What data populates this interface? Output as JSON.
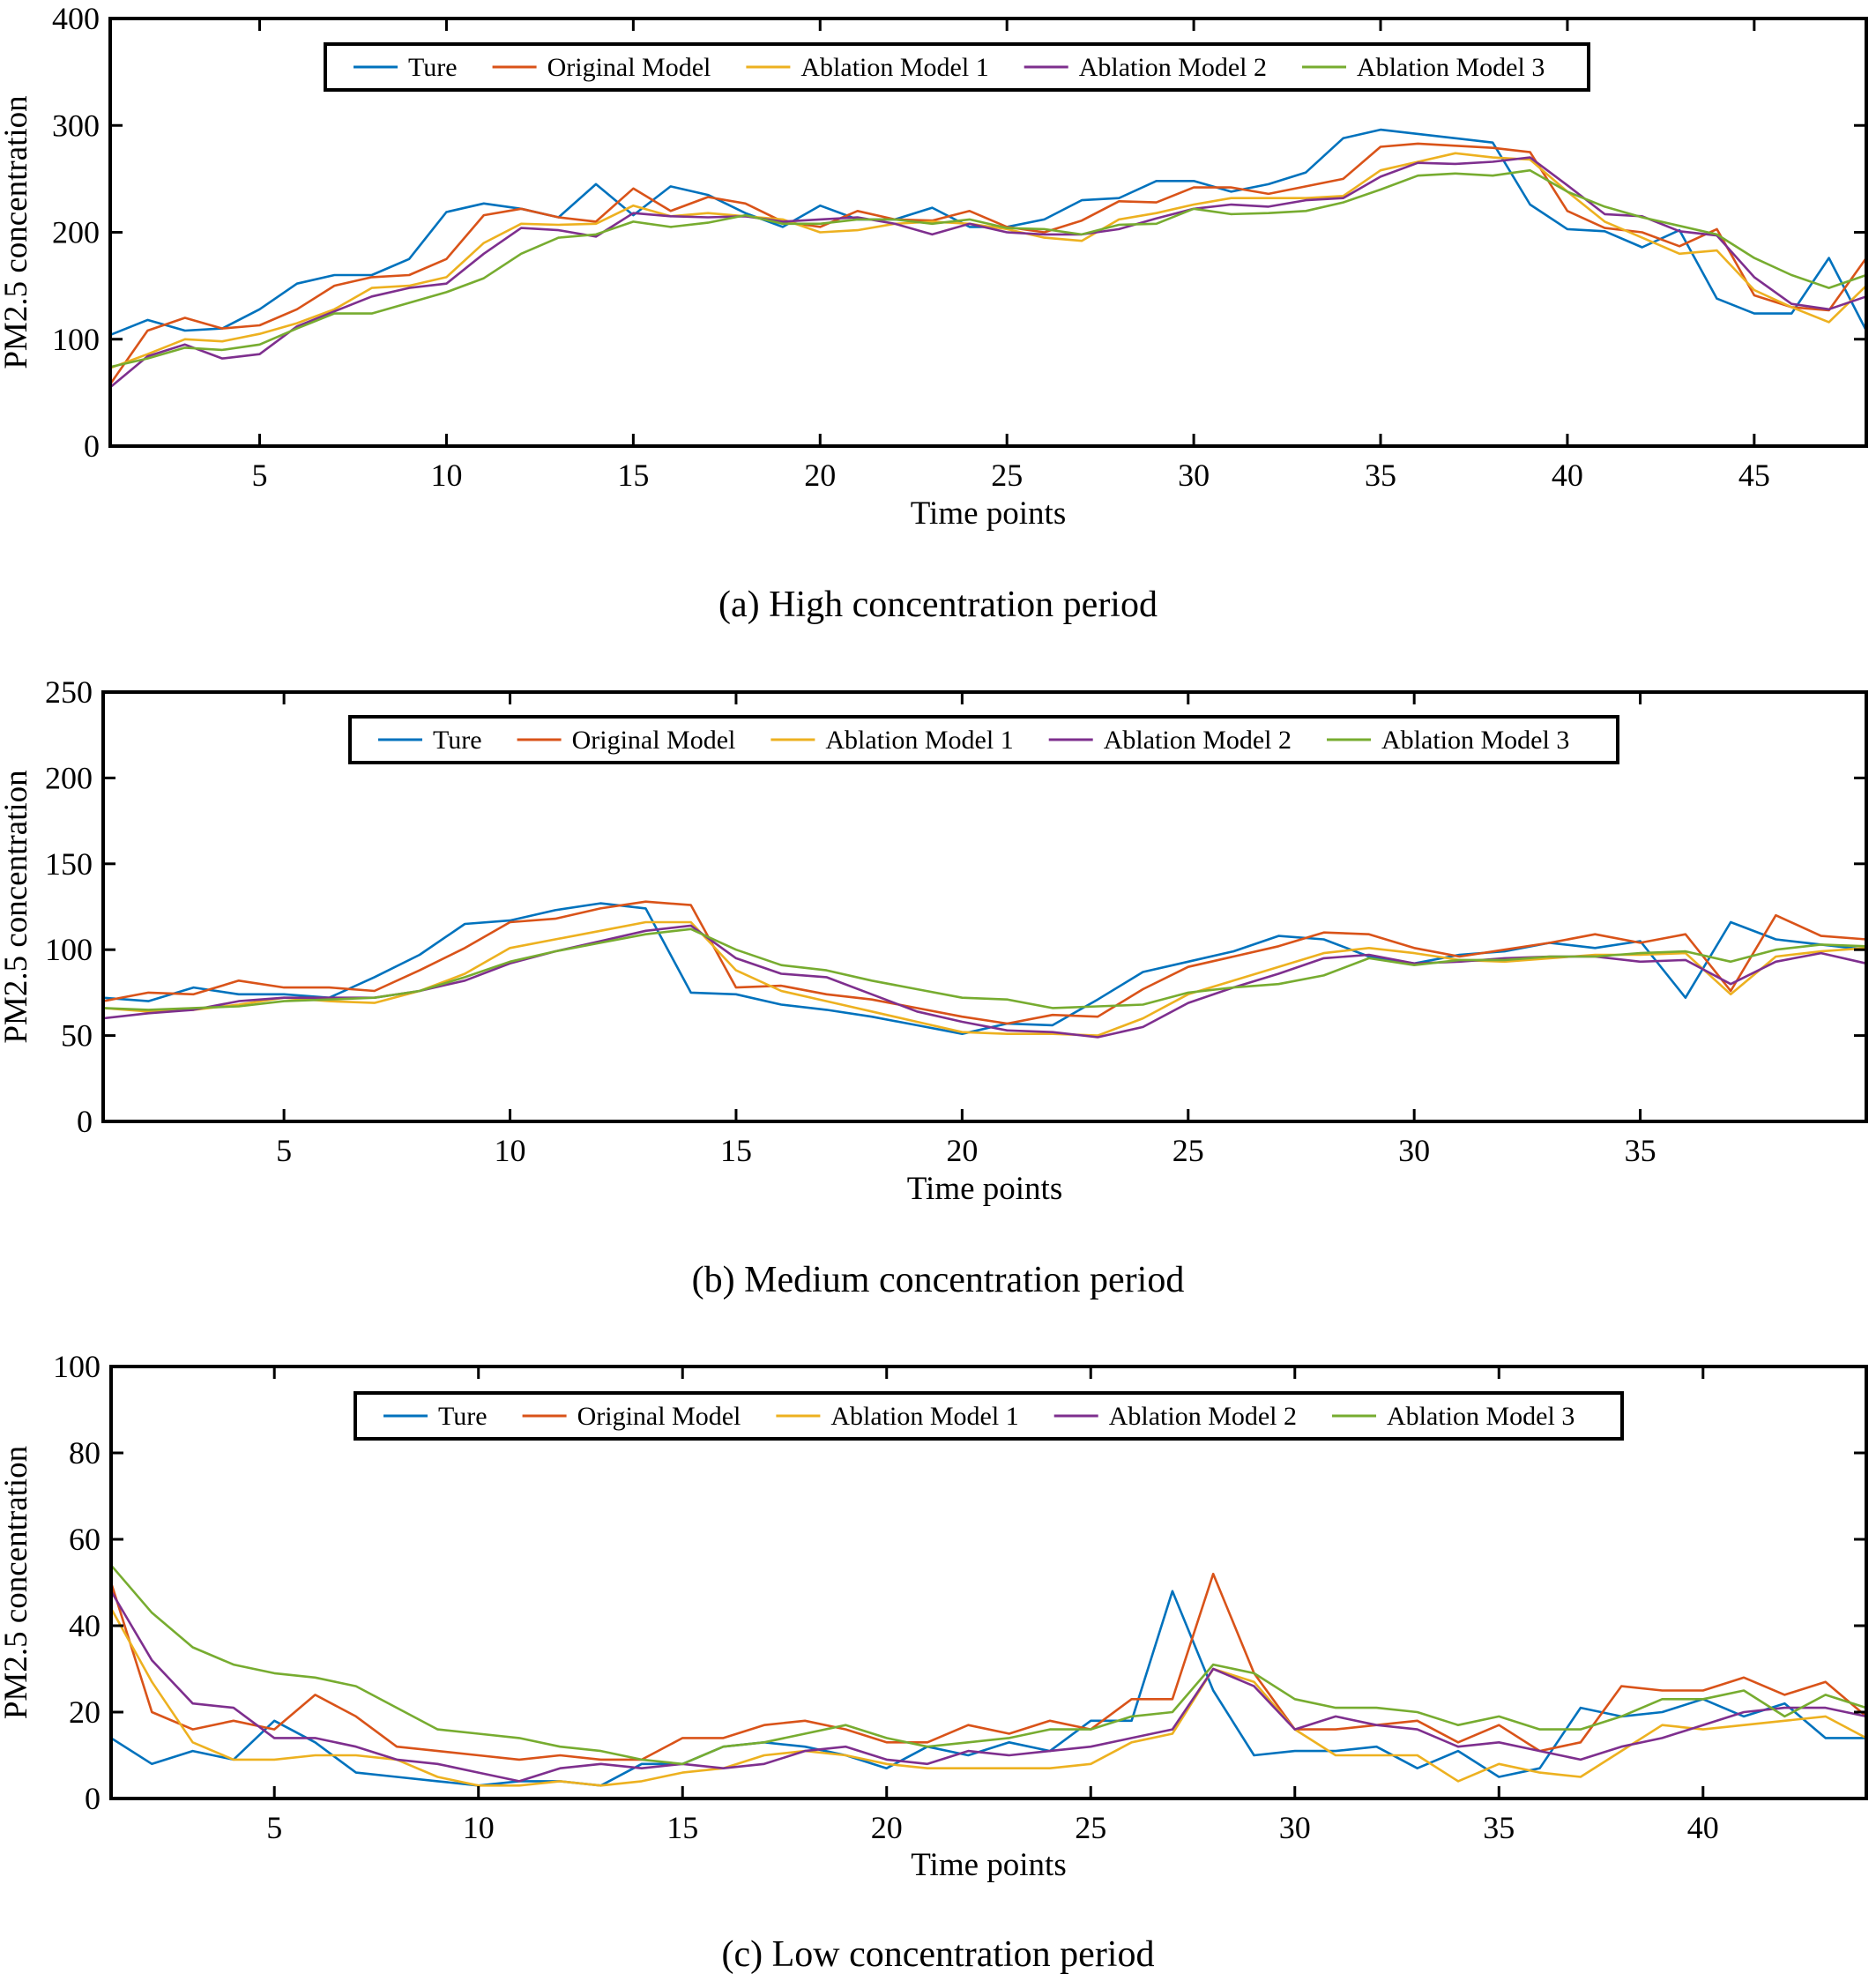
{
  "colors": {
    "Ture": "#0072BD",
    "Original Model": "#D95319",
    "Ablation Model 1": "#EDB120",
    "Ablation Model 2": "#7E2F8E",
    "Ablation Model 3": "#77AC30"
  },
  "chart_data": [
    {
      "type": "line",
      "caption": "(a) High concentration period",
      "xlabel": "Time points",
      "ylabel": "PM2.5 concentration",
      "xlim": [
        1,
        48
      ],
      "ylim": [
        0,
        400
      ],
      "xticks": [
        5,
        10,
        15,
        20,
        25,
        30,
        35,
        40,
        45
      ],
      "yticks": [
        0,
        100,
        200,
        300,
        400
      ],
      "grid": false,
      "legend": "top-center",
      "legend_entries": [
        "Ture",
        "Original Model",
        "Ablation Model 1",
        "Ablation Model 2",
        "Ablation Model 3"
      ],
      "x": [
        1,
        2,
        3,
        4,
        5,
        6,
        7,
        8,
        9,
        10,
        11,
        12,
        13,
        14,
        15,
        16,
        17,
        18,
        19,
        20,
        21,
        22,
        23,
        24,
        25,
        26,
        27,
        28,
        29,
        30,
        31,
        32,
        33,
        34,
        35,
        36,
        37,
        38,
        39,
        40,
        41,
        42,
        43,
        44,
        45,
        46,
        47,
        48
      ],
      "series": [
        {
          "name": "Ture",
          "values": [
            104,
            118,
            108,
            110,
            128,
            152,
            160,
            160,
            175,
            219,
            227,
            222,
            214,
            245,
            216,
            243,
            235,
            218,
            205,
            225,
            212,
            212,
            223,
            205,
            205,
            212,
            230,
            232,
            248,
            248,
            238,
            245,
            256,
            288,
            296,
            292,
            288,
            284,
            226,
            203,
            201,
            186,
            202,
            138,
            124,
            124,
            176,
            108
          ]
        },
        {
          "name": "Original Model",
          "values": [
            58,
            108,
            120,
            110,
            113,
            128,
            150,
            158,
            160,
            175,
            216,
            222,
            214,
            210,
            241,
            220,
            233,
            227,
            210,
            205,
            220,
            212,
            211,
            220,
            205,
            200,
            211,
            229,
            228,
            242,
            242,
            236,
            243,
            250,
            280,
            283,
            281,
            279,
            275,
            220,
            204,
            200,
            187,
            203,
            141,
            130,
            127,
            176
          ]
        },
        {
          "name": "Ablation Model 1",
          "values": [
            73,
            86,
            100,
            98,
            105,
            115,
            128,
            148,
            150,
            158,
            190,
            208,
            207,
            208,
            225,
            215,
            218,
            215,
            212,
            200,
            202,
            208,
            210,
            208,
            203,
            195,
            192,
            212,
            218,
            226,
            232,
            232,
            232,
            234,
            258,
            266,
            274,
            270,
            268,
            238,
            210,
            195,
            180,
            183,
            146,
            130,
            116,
            150
          ]
        },
        {
          "name": "Ablation Model 2",
          "values": [
            55,
            84,
            95,
            82,
            86,
            112,
            126,
            140,
            148,
            152,
            180,
            204,
            202,
            196,
            218,
            215,
            214,
            215,
            210,
            212,
            214,
            208,
            198,
            208,
            200,
            198,
            198,
            203,
            213,
            222,
            226,
            224,
            230,
            232,
            252,
            265,
            264,
            266,
            270,
            244,
            217,
            215,
            201,
            197,
            158,
            133,
            128,
            140
          ]
        },
        {
          "name": "Ablation Model 3",
          "values": [
            74,
            82,
            92,
            90,
            95,
            110,
            124,
            124,
            134,
            144,
            157,
            180,
            195,
            198,
            210,
            205,
            209,
            216,
            208,
            208,
            212,
            212,
            208,
            212,
            204,
            203,
            198,
            207,
            208,
            222,
            217,
            218,
            220,
            228,
            240,
            253,
            255,
            253,
            258,
            238,
            224,
            214,
            206,
            198,
            176,
            160,
            148,
            160
          ]
        }
      ]
    },
    {
      "type": "line",
      "caption": "(b) Medium concentration period",
      "xlabel": "Time points",
      "ylabel": "PM2.5 concentration",
      "xlim": [
        1,
        40
      ],
      "ylim": [
        0,
        250
      ],
      "xticks": [
        5,
        10,
        15,
        20,
        25,
        30,
        35
      ],
      "yticks": [
        0,
        50,
        100,
        150,
        200,
        250
      ],
      "grid": false,
      "legend": "top-center",
      "legend_entries": [
        "Ture",
        "Original Model",
        "Ablation Model 1",
        "Ablation Model 2",
        "Ablation Model 3"
      ],
      "x": [
        1,
        2,
        3,
        4,
        5,
        6,
        7,
        8,
        9,
        10,
        11,
        12,
        13,
        14,
        15,
        16,
        17,
        18,
        19,
        20,
        21,
        22,
        23,
        24,
        25,
        26,
        27,
        28,
        29,
        30,
        31,
        32,
        33,
        34,
        35,
        36,
        37,
        38,
        39,
        40
      ],
      "series": [
        {
          "name": "Ture",
          "values": [
            72,
            70,
            78,
            74,
            74,
            72,
            84,
            97,
            115,
            117,
            123,
            127,
            124,
            75,
            74,
            68,
            65,
            61,
            56,
            51,
            57,
            56,
            71,
            87,
            93,
            99,
            108,
            106,
            96,
            92,
            97,
            99,
            104,
            101,
            105,
            72,
            116,
            106,
            103,
            100
          ]
        },
        {
          "name": "Original Model",
          "values": [
            70,
            75,
            74,
            82,
            78,
            78,
            76,
            88,
            101,
            116,
            118,
            124,
            128,
            126,
            78,
            79,
            74,
            71,
            66,
            61,
            57,
            62,
            61,
            77,
            90,
            96,
            102,
            110,
            109,
            101,
            96,
            100,
            104,
            109,
            104,
            109,
            76,
            120,
            108,
            106
          ]
        },
        {
          "name": "Ablation Model 1",
          "values": [
            66,
            64,
            65,
            68,
            72,
            70,
            69,
            76,
            86,
            101,
            106,
            111,
            116,
            116,
            88,
            76,
            70,
            64,
            58,
            52,
            51,
            51,
            50,
            60,
            74,
            82,
            90,
            98,
            101,
            98,
            94,
            93,
            95,
            97,
            97,
            98,
            74,
            96,
            99,
            101
          ]
        },
        {
          "name": "Ablation Model 2",
          "values": [
            60,
            63,
            65,
            70,
            72,
            72,
            72,
            76,
            82,
            92,
            99,
            105,
            111,
            114,
            95,
            86,
            84,
            74,
            64,
            58,
            53,
            52,
            49,
            55,
            69,
            78,
            86,
            95,
            97,
            92,
            93,
            95,
            96,
            96,
            93,
            94,
            80,
            93,
            98,
            92
          ]
        },
        {
          "name": "Ablation Model 3",
          "values": [
            66,
            65,
            66,
            67,
            70,
            71,
            72,
            76,
            84,
            93,
            99,
            104,
            109,
            112,
            100,
            91,
            88,
            82,
            77,
            72,
            71,
            66,
            67,
            68,
            75,
            78,
            80,
            85,
            95,
            91,
            94,
            94,
            96,
            96,
            98,
            99,
            93,
            100,
            103,
            102
          ]
        }
      ]
    },
    {
      "type": "line",
      "caption": "(c) Low concentration period",
      "xlabel": "Time points",
      "ylabel": "PM2.5 concentration",
      "xlim": [
        1,
        44
      ],
      "ylim": [
        0,
        100
      ],
      "xticks": [
        5,
        10,
        15,
        20,
        25,
        30,
        35,
        40
      ],
      "yticks": [
        0,
        20,
        40,
        60,
        80,
        100
      ],
      "grid": false,
      "legend": "top-center",
      "legend_entries": [
        "Ture",
        "Original Model",
        "Ablation Model 1",
        "Ablation Model 2",
        "Ablation Model 3"
      ],
      "x": [
        1,
        2,
        3,
        4,
        5,
        6,
        7,
        8,
        9,
        10,
        11,
        12,
        13,
        14,
        15,
        16,
        17,
        18,
        19,
        20,
        21,
        22,
        23,
        24,
        25,
        26,
        27,
        28,
        29,
        30,
        31,
        32,
        33,
        34,
        35,
        36,
        37,
        38,
        39,
        40,
        41,
        42,
        43,
        44
      ],
      "series": [
        {
          "name": "Ture",
          "values": [
            14,
            8,
            11,
            9,
            18,
            13,
            6,
            5,
            4,
            3,
            4,
            4,
            3,
            8,
            8,
            12,
            13,
            12,
            10,
            7,
            12,
            10,
            13,
            11,
            18,
            18,
            48,
            25,
            10,
            11,
            11,
            12,
            7,
            11,
            5,
            7,
            21,
            19,
            20,
            23,
            19,
            22,
            14,
            14
          ]
        },
        {
          "name": "Original Model",
          "values": [
            50,
            20,
            16,
            18,
            16,
            24,
            19,
            12,
            11,
            10,
            9,
            10,
            9,
            9,
            14,
            14,
            17,
            18,
            16,
            13,
            13,
            17,
            15,
            18,
            16,
            23,
            23,
            52,
            29,
            16,
            16,
            17,
            18,
            13,
            17,
            11,
            13,
            26,
            25,
            25,
            28,
            24,
            27,
            19
          ]
        },
        {
          "name": "Ablation Model 1",
          "values": [
            44,
            27,
            13,
            9,
            9,
            10,
            10,
            9,
            5,
            3,
            3,
            4,
            3,
            4,
            6,
            7,
            10,
            11,
            10,
            8,
            7,
            7,
            7,
            7,
            8,
            13,
            15,
            30,
            27,
            16,
            10,
            10,
            10,
            4,
            8,
            6,
            5,
            11,
            17,
            16,
            17,
            18,
            19,
            14
          ]
        },
        {
          "name": "Ablation Model 2",
          "values": [
            48,
            32,
            22,
            21,
            14,
            14,
            12,
            9,
            8,
            6,
            4,
            7,
            8,
            7,
            8,
            7,
            8,
            11,
            12,
            9,
            8,
            11,
            10,
            11,
            12,
            14,
            16,
            30,
            26,
            16,
            19,
            17,
            16,
            12,
            13,
            11,
            9,
            12,
            14,
            17,
            20,
            21,
            21,
            19
          ]
        },
        {
          "name": "Ablation Model 3",
          "values": [
            54,
            43,
            35,
            31,
            29,
            28,
            26,
            21,
            16,
            15,
            14,
            12,
            11,
            9,
            8,
            12,
            13,
            15,
            17,
            14,
            12,
            13,
            14,
            16,
            16,
            19,
            20,
            31,
            29,
            23,
            21,
            21,
            20,
            17,
            19,
            16,
            16,
            19,
            23,
            23,
            25,
            19,
            24,
            21
          ]
        }
      ]
    }
  ]
}
